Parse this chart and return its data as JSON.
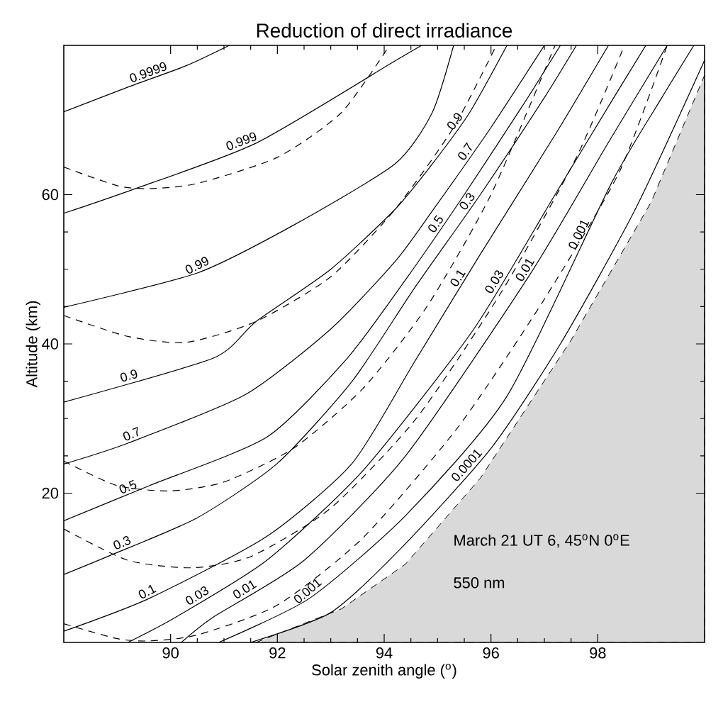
{
  "chart_data": {
    "type": "line",
    "title": "Reduction of direct irradiance",
    "xlabel": "Solar zenith angle ($^{o}$)",
    "ylabel": "Altitude (km)",
    "xlim": [
      88,
      100
    ],
    "ylim": [
      0,
      80
    ],
    "xticks": [
      90,
      92,
      94,
      96,
      98
    ],
    "yticks": [
      20,
      40,
      60
    ],
    "annotations": [
      "March 21 UT 6, 45$^{o}$N 0$^{o}$E",
      "550 nm"
    ],
    "series": [
      {
        "type": "area",
        "color": "#d9d9d9",
        "line_style": "dashed",
        "x": [
          91.6,
          93.2,
          94.4,
          95.8,
          97.5,
          99,
          100
        ],
        "values": [
          0,
          4.5,
          10.5,
          22,
          40.5,
          59,
          76
        ]
      },
      {
        "name": "0.9999",
        "color": "#000000",
        "x": [
          88,
          89.2,
          90.3,
          91.1
        ],
        "values": [
          71.1,
          74.4,
          77.3,
          80
        ]
      },
      {
        "name": "0.999",
        "color": "#000000",
        "x": [
          88,
          89.3,
          91.6,
          94.2,
          94.7
        ],
        "values": [
          57.5,
          60.7,
          66.9,
          77.9,
          80
        ]
      },
      {
        "name": "0.99",
        "color": "#000000",
        "x": [
          88,
          90.5,
          92.3,
          94.2,
          94.9,
          95.3
        ],
        "values": [
          44.9,
          49.5,
          55.9,
          64.1,
          71,
          80
        ]
      },
      {
        "name": "0.9",
        "color": "#000000",
        "x": [
          88,
          90.8,
          91.6,
          93,
          94.2,
          94.9,
          95.6,
          96.3
        ],
        "values": [
          32.2,
          38.1,
          43,
          50,
          58,
          64.1,
          71,
          80
        ]
      },
      {
        "name": "0.7",
        "color": "#000000",
        "x": [
          88,
          89.2,
          91.4,
          93,
          94.2,
          94.9,
          96,
          97
        ],
        "values": [
          23.9,
          26.7,
          33.2,
          42,
          51,
          57.8,
          69,
          80
        ]
      },
      {
        "name": "0.5",
        "color": "#000000",
        "x": [
          88,
          89.6,
          91.8,
          93.3,
          94.43,
          95.5,
          96.6,
          97.3
        ],
        "values": [
          16.3,
          21,
          27.5,
          38,
          48.9,
          60,
          72,
          80
        ]
      },
      {
        "name": "0.3",
        "color": "#000000",
        "x": [
          88,
          88.85,
          90.5,
          92,
          93.4,
          94.56,
          95.8,
          97,
          97.6
        ],
        "values": [
          9.1,
          11.6,
          16.7,
          24,
          35,
          47.4,
          60,
          73,
          80
        ]
      },
      {
        "name": "0.1",
        "color": "#000000",
        "x": [
          88,
          89.6,
          91.8,
          93.4,
          94.56,
          95.8,
          97.2,
          98.2
        ],
        "values": [
          1.5,
          5.9,
          14.2,
          24,
          37.5,
          52,
          68,
          80
        ]
      },
      {
        "name": "0.03",
        "color": "#000000",
        "x": [
          89.2,
          90.1,
          91.8,
          93.6,
          95.67,
          97.2,
          98.3,
          98.9
        ],
        "values": [
          0,
          3.4,
          11,
          23,
          41.9,
          60,
          73,
          80
        ]
      },
      {
        "name": "0.01",
        "color": "#000000",
        "x": [
          90.2,
          90.8,
          92.5,
          94.4,
          96.73,
          98.2,
          99.3
        ],
        "values": [
          0,
          3.4,
          11,
          25,
          49.3,
          67,
          80
        ]
      },
      {
        "name": "0.001",
        "color": "#000000",
        "x": [
          90.9,
          92.6,
          94.4,
          96.3,
          98.26,
          99.2,
          99.8
        ],
        "values": [
          0,
          5.9,
          17,
          33,
          61.6,
          73,
          80
        ]
      },
      {
        "name": "0.0001",
        "color": "#000000",
        "x": [
          91.5,
          93,
          94.3,
          96,
          97.3,
          98.7,
          100
        ],
        "values": [
          0,
          4,
          12.5,
          26,
          40,
          58,
          78
        ]
      },
      {
        "color": "#000000",
        "line_style": "dashed",
        "x": [
          88,
          89,
          89.6,
          90.5,
          92,
          93.2,
          94.1
        ],
        "values": [
          63.7,
          61.2,
          60.8,
          61.5,
          65,
          71,
          80
        ]
      },
      {
        "color": "#000000",
        "line_style": "dashed",
        "x": [
          88,
          89.2,
          90.3,
          91.6,
          93,
          94.2,
          95.3,
          96.1
        ],
        "values": [
          43.8,
          41,
          40.2,
          43,
          49,
          58,
          69,
          80
        ]
      },
      {
        "color": "#000000",
        "line_style": "dashed",
        "x": [
          88,
          89,
          90,
          91,
          92.3,
          93.6,
          94.8,
          96,
          97.2
        ],
        "values": [
          24.3,
          21,
          20.3,
          21.5,
          26,
          34,
          45,
          60,
          80
        ]
      },
      {
        "color": "#000000",
        "line_style": "dashed",
        "x": [
          88,
          89.2,
          90.4,
          91.5,
          93,
          94.6,
          96.2,
          97.6,
          98.5
        ],
        "values": [
          15.2,
          11,
          10,
          11.5,
          18,
          30,
          47,
          65,
          80
        ]
      },
      {
        "color": "#000000",
        "line_style": "dashed",
        "x": [
          88,
          89,
          89.6,
          90.5,
          92,
          93.6,
          95.4,
          97,
          98.4,
          99.3
        ],
        "values": [
          2.5,
          0.5,
          0.2,
          1,
          5,
          14,
          29,
          46,
          63,
          80
        ]
      }
    ]
  }
}
